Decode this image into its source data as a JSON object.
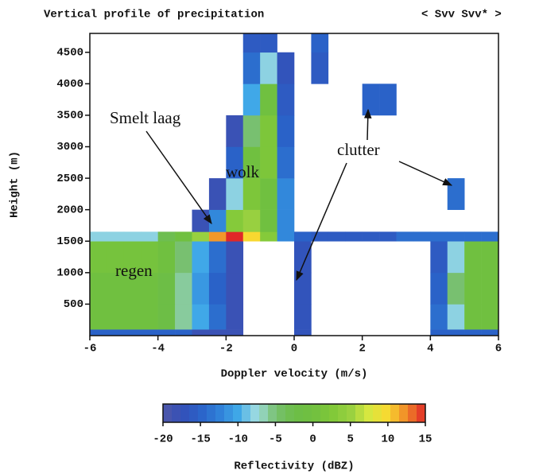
{
  "chart_data": {
    "type": "heatmap",
    "title": "Vertical profile of precipitation",
    "subtitle": "< Svv Svv* >",
    "x_label": "Doppler velocity (m/s)",
    "y_label": "Height (m)",
    "xlim": [
      -6,
      6
    ],
    "xticks": [
      -6,
      -4,
      -2,
      0,
      2,
      4,
      6
    ],
    "ylim": [
      0,
      4800
    ],
    "yticks": [
      500,
      1000,
      1500,
      2000,
      2500,
      3000,
      3500,
      4000,
      4500
    ],
    "xbins": [
      -6,
      -5.5,
      -5,
      -4.5,
      -4,
      -3.5,
      -3,
      -2.5,
      -2,
      -1.5,
      -1,
      -0.5,
      0,
      0.5,
      1,
      1.5,
      2,
      2.5,
      3,
      3.5,
      4,
      4.5,
      5,
      5.5,
      6
    ],
    "ybins": [
      0,
      100,
      500,
      1000,
      1500,
      1650,
      2000,
      2500,
      3000,
      3500,
      4000,
      4500,
      4800
    ],
    "z": [
      [
        -15,
        -15,
        -15,
        -15,
        -15,
        -15,
        -18,
        -18,
        -18,
        null,
        null,
        null,
        -17,
        null,
        null,
        null,
        null,
        null,
        null,
        null,
        -15,
        -15,
        -15,
        -15
      ],
      [
        0,
        0,
        0,
        0,
        -2,
        -6,
        -10,
        -14,
        -18,
        null,
        null,
        null,
        -17,
        null,
        null,
        null,
        null,
        null,
        null,
        null,
        -14,
        -8,
        0,
        0
      ],
      [
        0,
        0,
        0,
        0,
        -2,
        -6,
        -11,
        -15,
        -18,
        null,
        null,
        null,
        -17,
        null,
        null,
        null,
        null,
        null,
        null,
        null,
        -15,
        -5,
        0,
        0
      ],
      [
        1,
        1,
        1,
        1,
        0,
        -5,
        -10,
        -14,
        -18,
        null,
        null,
        null,
        -17,
        null,
        null,
        null,
        null,
        null,
        null,
        null,
        -16,
        -8,
        0,
        0
      ],
      [
        -8,
        -8,
        -8,
        -8,
        -3,
        0,
        5,
        12,
        15,
        10,
        3,
        -12,
        -15,
        -16,
        -16,
        -16,
        -16,
        -16,
        -14,
        -14,
        -14,
        -14,
        -14,
        -14
      ],
      [
        null,
        null,
        null,
        null,
        null,
        null,
        -18,
        -12,
        3,
        5,
        0,
        -12,
        null,
        null,
        null,
        null,
        null,
        null,
        null,
        null,
        null,
        null,
        null,
        null
      ],
      [
        null,
        null,
        null,
        null,
        null,
        null,
        null,
        -18,
        -8,
        2,
        0,
        -12,
        null,
        null,
        null,
        null,
        null,
        null,
        null,
        null,
        null,
        -14,
        null,
        null
      ],
      [
        null,
        null,
        null,
        null,
        null,
        null,
        null,
        null,
        -15,
        0,
        2,
        -14,
        null,
        null,
        null,
        null,
        null,
        null,
        null,
        null,
        null,
        null,
        null,
        null
      ],
      [
        null,
        null,
        null,
        null,
        null,
        null,
        null,
        null,
        -18,
        -5,
        2,
        -15,
        null,
        null,
        null,
        null,
        null,
        null,
        null,
        null,
        null,
        null,
        null,
        null
      ],
      [
        null,
        null,
        null,
        null,
        null,
        null,
        null,
        null,
        null,
        -10,
        0,
        -16,
        null,
        null,
        null,
        null,
        -15,
        -15,
        null,
        null,
        null,
        null,
        null,
        null
      ],
      [
        null,
        null,
        null,
        null,
        null,
        null,
        null,
        null,
        null,
        -14,
        -8,
        -17,
        null,
        -16,
        null,
        null,
        null,
        null,
        null,
        null,
        null,
        null,
        null,
        null
      ],
      [
        null,
        null,
        null,
        null,
        null,
        null,
        null,
        null,
        null,
        -16,
        -16,
        null,
        null,
        -15,
        null,
        null,
        null,
        null,
        null,
        null,
        null,
        null,
        null,
        null
      ]
    ],
    "colorbar_label": "Reflectivity (dBZ)",
    "clim": [
      -20,
      15
    ],
    "cticks": [
      -20,
      -15,
      -10,
      -5,
      0,
      5,
      10,
      15
    ],
    "colormap": [
      "#5058a8",
      "#3450b8",
      "#2a62c8",
      "#2f80d8",
      "#40a8e8",
      "#a0dce0",
      "#78c070",
      "#6cbe48",
      "#70c040",
      "#80c838",
      "#98d040",
      "#d8e840",
      "#f8d830",
      "#f08828",
      "#e02828"
    ],
    "annotations": [
      "Smelt laag",
      "wolk",
      "regen",
      "clutter"
    ]
  }
}
